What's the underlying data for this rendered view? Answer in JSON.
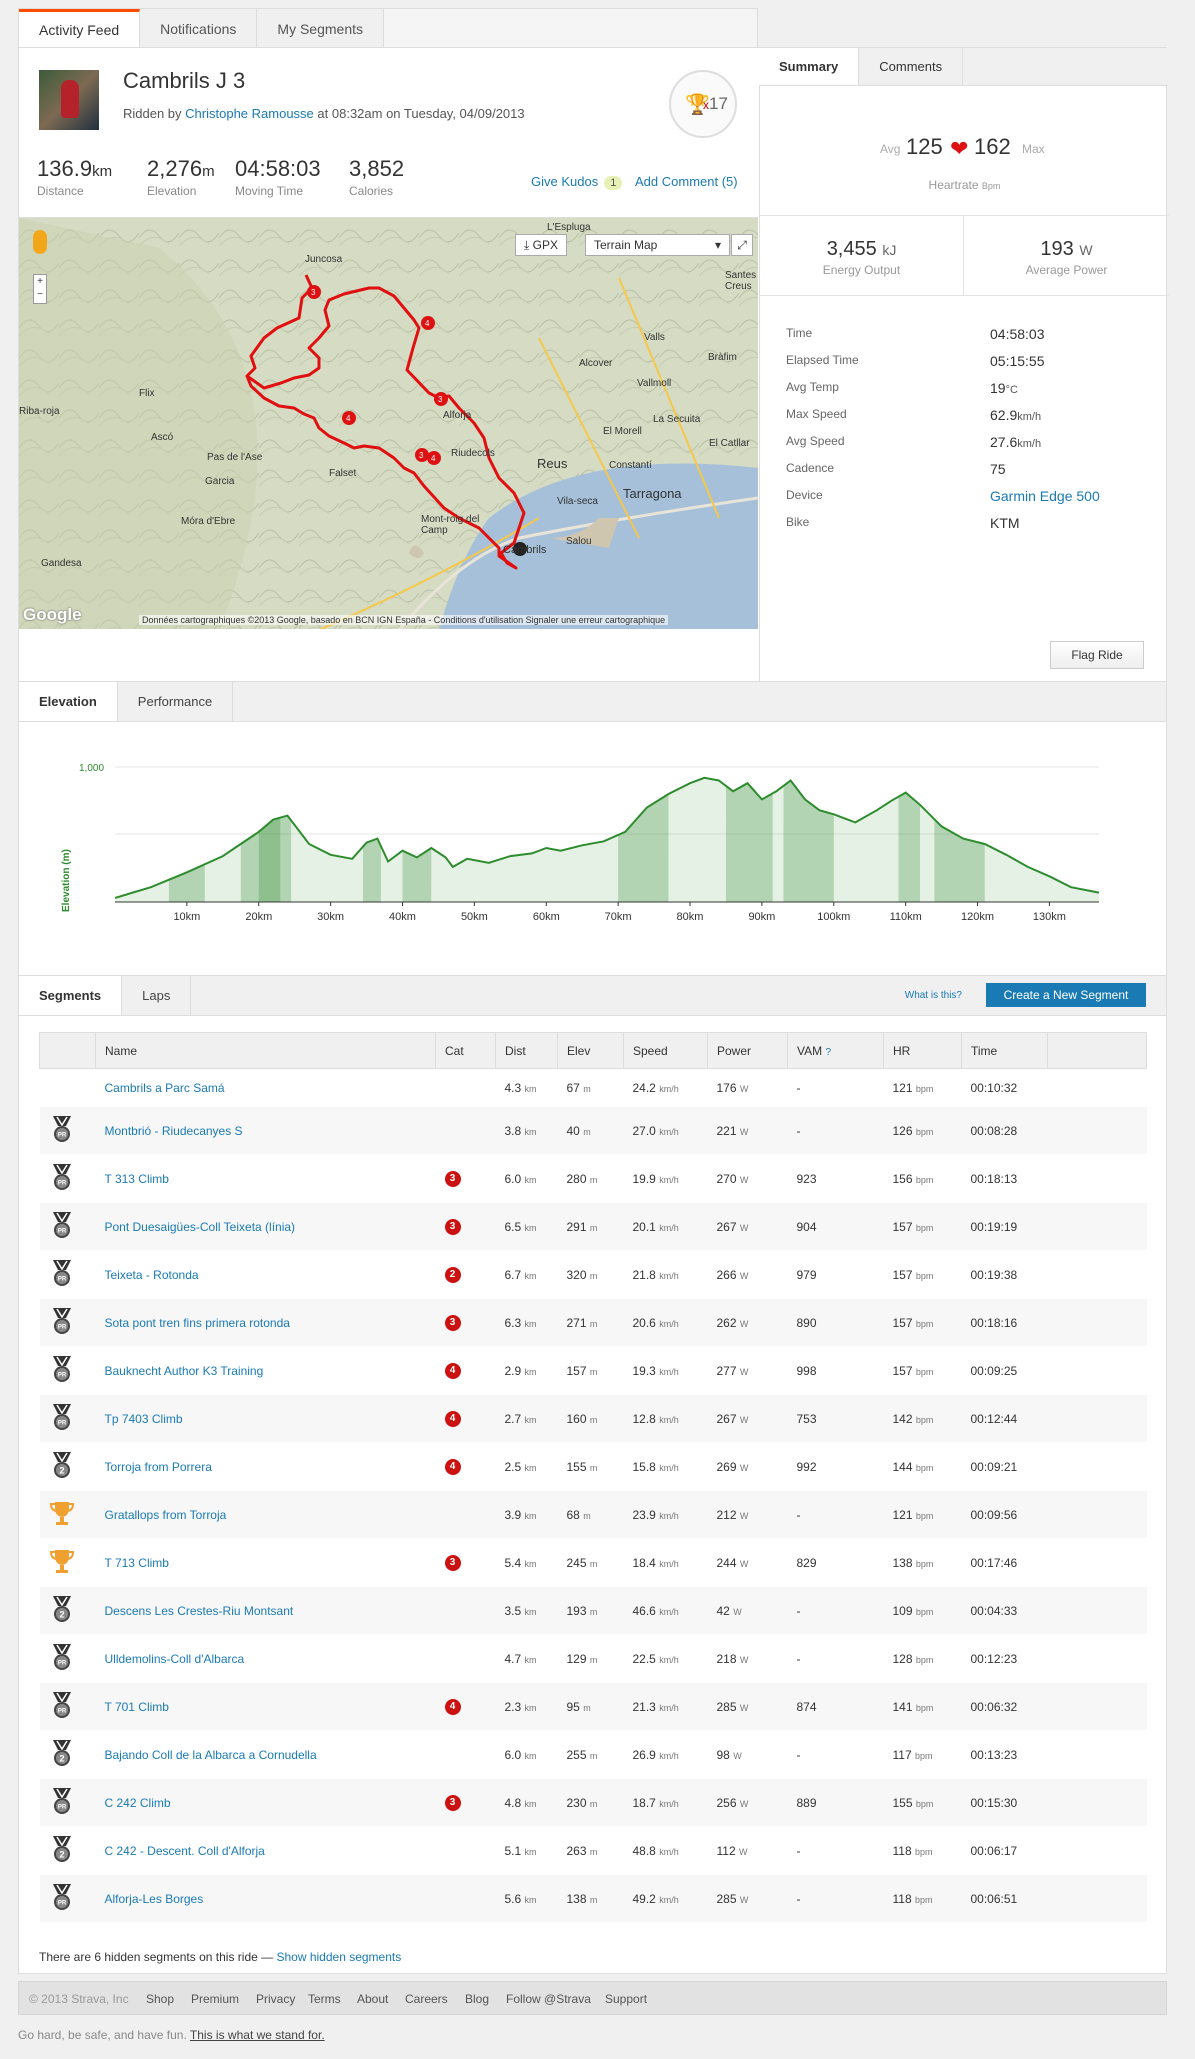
{
  "top_tabs": [
    "Activity Feed",
    "Notifications",
    "My Segments"
  ],
  "activity": {
    "title": "Cambrils J 3",
    "ridden_by_prefix": "Ridden by",
    "athlete": "Christophe Ramousse",
    "ridden_suffix": "at 08:32am on Tuesday, 04/09/2013",
    "trophy_count": "17",
    "trophy_x": "x"
  },
  "stats": [
    {
      "value": "136.9",
      "unit": "km",
      "label": "Distance"
    },
    {
      "value": "2,276",
      "unit": "m",
      "label": "Elevation"
    },
    {
      "value": "04:58:03",
      "unit": "",
      "label": "Moving Time"
    },
    {
      "value": "3,852",
      "unit": "",
      "label": "Calories"
    }
  ],
  "social": {
    "kudos_label": "Give Kudos",
    "kudos_count": "1",
    "comment_label": "Add Comment (5)"
  },
  "map": {
    "gpx_label": "GPX",
    "type_label": "Terrain Map",
    "credit": "Données cartographiques ©2013 Google, basado en BCN IGN España - Conditions d'utilisation   Signaler une erreur cartographique",
    "google": "Google",
    "places": [
      "L'Espluga",
      "Juncosa",
      "Santes Creus",
      "Valls",
      "Bràfim",
      "Alcover",
      "Vallmoll",
      "Flix",
      "Riba-roja",
      "Ascó",
      "La Secuita",
      "El Morell",
      "Alforja",
      "El Catllar",
      "Pas de l'Ase",
      "Riudecols",
      "Reus",
      "Constantí",
      "Garcia",
      "Falset",
      "Vila-seca",
      "Tarragona",
      "Móra d'Ebre",
      "Mont-roig del Camp",
      "Salou",
      "Gandesa",
      "Cambrils"
    ],
    "marker_labels": [
      "3",
      "4",
      "3",
      "4",
      "3",
      "4"
    ]
  },
  "summary": {
    "tabs": [
      "Summary",
      "Comments"
    ],
    "hr_avg_label": "Avg",
    "hr_avg": "125",
    "hr_max": "162",
    "hr_max_label": "Max",
    "hr_label": "Heartrate",
    "hr_unit": "Bpm",
    "energy": {
      "value": "3,455",
      "unit": "kJ",
      "label": "Energy Output"
    },
    "power": {
      "value": "193",
      "unit": "W",
      "label": "Average Power"
    },
    "details": [
      {
        "k": "Time",
        "v": "04:58:03",
        "u": ""
      },
      {
        "k": "Elapsed Time",
        "v": "05:15:55",
        "u": ""
      },
      {
        "k": "Avg Temp",
        "v": "19",
        "u": "°C"
      },
      {
        "k": "Max Speed",
        "v": "62.9",
        "u": "km/h"
      },
      {
        "k": "Avg Speed",
        "v": "27.6",
        "u": "km/h"
      },
      {
        "k": "Cadence",
        "v": "75",
        "u": ""
      },
      {
        "k": "Device",
        "v": "Garmin Edge 500",
        "u": ""
      },
      {
        "k": "Bike",
        "v": "KTM",
        "u": ""
      }
    ],
    "flag_label": "Flag Ride"
  },
  "elevation": {
    "tabs": [
      "Elevation",
      "Performance"
    ],
    "ylabel": "Elevation (m)",
    "ytick": "1,000",
    "xticks": [
      "10km",
      "20km",
      "30km",
      "40km",
      "50km",
      "60km",
      "70km",
      "80km",
      "90km",
      "100km",
      "110km",
      "120km",
      "130km"
    ]
  },
  "chart_data": {
    "type": "area",
    "ylabel": "Elevation (m)",
    "ylim": [
      0,
      1000
    ],
    "x": [
      0,
      5,
      10,
      15,
      20,
      22,
      24,
      27,
      30,
      33,
      35,
      36.5,
      38,
      40,
      42,
      44,
      46,
      47,
      49,
      52,
      55,
      58,
      60,
      62,
      65,
      68,
      71,
      74,
      77,
      80,
      82,
      84,
      86,
      88,
      90,
      92,
      94,
      96,
      98,
      100,
      103,
      106,
      108,
      110,
      112,
      115,
      118,
      121,
      124,
      127,
      130,
      133,
      136.9
    ],
    "y": [
      30,
      110,
      220,
      340,
      520,
      610,
      640,
      430,
      350,
      320,
      440,
      470,
      300,
      380,
      330,
      400,
      330,
      260,
      320,
      290,
      340,
      360,
      400,
      380,
      420,
      450,
      520,
      700,
      800,
      880,
      920,
      900,
      820,
      880,
      760,
      820,
      900,
      760,
      680,
      650,
      590,
      680,
      750,
      810,
      720,
      560,
      470,
      430,
      350,
      260,
      190,
      110,
      70
    ],
    "color": "#2d8c2d"
  },
  "segments": {
    "tabs": [
      "Segments",
      "Laps"
    ],
    "what_label": "What is this?",
    "create_label": "Create a New Segment",
    "headers": [
      "",
      "Name",
      "Cat",
      "Dist",
      "Elev",
      "Speed",
      "Power",
      "VAM",
      "HR",
      "Time"
    ],
    "vam_q": "?",
    "rows": [
      {
        "medal": "",
        "name": "Cambrils a Parc Samá",
        "cat": "",
        "dist": "4.3",
        "elev": "67",
        "speed": "24.2",
        "power": "176",
        "vam": "-",
        "hr": "121",
        "time": "00:10:32"
      },
      {
        "medal": "pr",
        "name": "Montbrió - Riudecanyes S",
        "cat": "",
        "dist": "3.8",
        "elev": "40",
        "speed": "27.0",
        "power": "221",
        "vam": "-",
        "hr": "126",
        "time": "00:08:28"
      },
      {
        "medal": "pr",
        "name": "T 313 Climb",
        "cat": "3",
        "dist": "6.0",
        "elev": "280",
        "speed": "19.9",
        "power": "270",
        "vam": "923",
        "hr": "156",
        "time": "00:18:13"
      },
      {
        "medal": "pr",
        "name": "Pont Duesaigües-Coll Teixeta (línia)",
        "cat": "3",
        "dist": "6.5",
        "elev": "291",
        "speed": "20.1",
        "power": "267",
        "vam": "904",
        "hr": "157",
        "time": "00:19:19"
      },
      {
        "medal": "pr",
        "name": "Teixeta - Rotonda",
        "cat": "2",
        "dist": "6.7",
        "elev": "320",
        "speed": "21.8",
        "power": "266",
        "vam": "979",
        "hr": "157",
        "time": "00:19:38"
      },
      {
        "medal": "pr",
        "name": "Sota pont tren fins primera rotonda",
        "cat": "3",
        "dist": "6.3",
        "elev": "271",
        "speed": "20.6",
        "power": "262",
        "vam": "890",
        "hr": "157",
        "time": "00:18:16"
      },
      {
        "medal": "pr",
        "name": "Bauknecht Author K3 Training",
        "cat": "4",
        "dist": "2.9",
        "elev": "157",
        "speed": "19.3",
        "power": "277",
        "vam": "998",
        "hr": "157",
        "time": "00:09:25"
      },
      {
        "medal": "pr",
        "name": "Tp 7403 Climb",
        "cat": "4",
        "dist": "2.7",
        "elev": "160",
        "speed": "12.8",
        "power": "267",
        "vam": "753",
        "hr": "142",
        "time": "00:12:44"
      },
      {
        "medal": "2",
        "name": "Torroja from Porrera",
        "cat": "4",
        "dist": "2.5",
        "elev": "155",
        "speed": "15.8",
        "power": "269",
        "vam": "992",
        "hr": "144",
        "time": "00:09:21"
      },
      {
        "medal": "trophy",
        "name": "Gratallops from Torroja",
        "cat": "",
        "dist": "3.9",
        "elev": "68",
        "speed": "23.9",
        "power": "212",
        "vam": "-",
        "hr": "121",
        "time": "00:09:56"
      },
      {
        "medal": "trophy",
        "name": "T 713 Climb",
        "cat": "3",
        "dist": "5.4",
        "elev": "245",
        "speed": "18.4",
        "power": "244",
        "vam": "829",
        "hr": "138",
        "time": "00:17:46"
      },
      {
        "medal": "2",
        "name": "Descens Les Crestes-Riu Montsant",
        "cat": "",
        "dist": "3.5",
        "elev": "193",
        "speed": "46.6",
        "power": "42",
        "vam": "-",
        "hr": "109",
        "time": "00:04:33"
      },
      {
        "medal": "pr",
        "name": "Ulldemolins-Coll d'Albarca",
        "cat": "",
        "dist": "4.7",
        "elev": "129",
        "speed": "22.5",
        "power": "218",
        "vam": "-",
        "hr": "128",
        "time": "00:12:23"
      },
      {
        "medal": "pr",
        "name": "T 701 Climb",
        "cat": "4",
        "dist": "2.3",
        "elev": "95",
        "speed": "21.3",
        "power": "285",
        "vam": "874",
        "hr": "141",
        "time": "00:06:32"
      },
      {
        "medal": "2",
        "name": "Bajando Coll de la Albarca a Cornudella",
        "cat": "",
        "dist": "6.0",
        "elev": "255",
        "speed": "26.9",
        "power": "98",
        "vam": "-",
        "hr": "117",
        "time": "00:13:23"
      },
      {
        "medal": "pr",
        "name": "C 242 Climb",
        "cat": "3",
        "dist": "4.8",
        "elev": "230",
        "speed": "18.7",
        "power": "256",
        "vam": "889",
        "hr": "155",
        "time": "00:15:30"
      },
      {
        "medal": "2",
        "name": "C 242 - Descent. Coll d'Alforja",
        "cat": "",
        "dist": "5.1",
        "elev": "263",
        "speed": "48.8",
        "power": "112",
        "vam": "-",
        "hr": "118",
        "time": "00:06:17"
      },
      {
        "medal": "pr",
        "name": "Alforja-Les Borges",
        "cat": "",
        "dist": "5.6",
        "elev": "138",
        "speed": "49.2",
        "power": "285",
        "vam": "-",
        "hr": "118",
        "time": "00:06:51"
      }
    ],
    "units": {
      "dist": "km",
      "elev": "m",
      "speed": "km/h",
      "power": "W",
      "hr": "bpm"
    },
    "hidden_note": "There are 6 hidden segments on this ride —",
    "hidden_link": "Show hidden segments",
    "medal_pr": "PR",
    "medal_2": "2"
  },
  "footer": {
    "copyright": "© 2013 Strava, Inc",
    "links": [
      "Shop",
      "Premium",
      "Privacy",
      "Terms",
      "About",
      "Careers",
      "Blog",
      "Follow @Strava",
      "Support"
    ],
    "tagline": "Go hard, be safe, and have fun.",
    "tagline_link": "This is what we stand for."
  },
  "colors": {
    "brand": "#fc4c02",
    "link": "#1a7ab3",
    "route": "#e01010",
    "elevation": "#2d8c2d",
    "cat_badge": "#cc1111",
    "trophy": "#f0a030"
  }
}
